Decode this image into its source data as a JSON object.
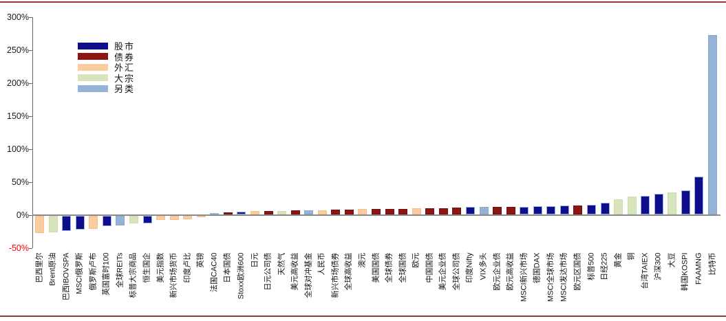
{
  "frame": {
    "border_color": "#953735",
    "background": "#FFFFFF",
    "axis_color": "#666666",
    "baseline_color": "#8C8C8C",
    "tick_text_color": "#1A1A1A",
    "negative_tick_color": "#FF0000"
  },
  "chart_data": {
    "type": "bar",
    "title": "",
    "unit": "%",
    "sorted": "ascending",
    "grid": "none",
    "legend_position": "inside-top-left",
    "ylim": [
      -50,
      300
    ],
    "yticks": [
      300,
      250,
      200,
      150,
      100,
      50,
      0,
      -50
    ],
    "ytick_labels": [
      "300%",
      "250%",
      "200%",
      "150%",
      "100%",
      "50%",
      "0%",
      "-50%"
    ],
    "legend": [
      {
        "label": "股市",
        "color": "#0E0E8C",
        "border": "#95B3D7"
      },
      {
        "label": "债券",
        "color": "#8F1414",
        "border": "#6E0F0F"
      },
      {
        "label": "外汇",
        "color": "#FBCD9E",
        "border": "#F5BE8A"
      },
      {
        "label": "大宗",
        "color": "#D7E4BC",
        "border": "#CCDCAC"
      },
      {
        "label": "另类",
        "color": "#95B3D7",
        "border": "#8CA8C9"
      }
    ],
    "categories": [
      "巴西里尔",
      "Brent原油",
      "巴西IBOVSPA",
      "MSCI俄罗斯",
      "俄罗斯卢布",
      "英国富时100",
      "全球REITs",
      "标普大宗商品",
      "恒生国企",
      "美元指数",
      "新兴市场货币",
      "印度卢比",
      "英镑",
      "法国CAC40",
      "日本国债",
      "Stoxx欧洲600",
      "日元",
      "日元公司债",
      "天然气",
      "美元高收益",
      "全球对冲基金",
      "人民币",
      "新兴市场债券",
      "全球高收益",
      "澳元",
      "美国国债",
      "全球债券",
      "全球国债",
      "欧元",
      "中国国债",
      "美元企业债",
      "全球公司债",
      "印度Nifty",
      "VIX多头",
      "欧元企业债",
      "欧元高收益",
      "MSCI新兴市场",
      "德国DAX",
      "MSCI全球市场",
      "MSCI发达市场",
      "欧元区国债",
      "标普500",
      "日经225",
      "黄金",
      "铜",
      "台湾TAIEX",
      "沪深300",
      "大豆",
      "韩国KOSPI",
      "FAAMNG",
      "比特币"
    ],
    "groups": [
      "外汇",
      "大宗",
      "股市",
      "股市",
      "外汇",
      "股市",
      "另类",
      "大宗",
      "股市",
      "外汇",
      "外汇",
      "外汇",
      "外汇",
      "股市",
      "债券",
      "股市",
      "外汇",
      "债券",
      "大宗",
      "债券",
      "另类",
      "外汇",
      "债券",
      "债券",
      "外汇",
      "债券",
      "债券",
      "债券",
      "外汇",
      "债券",
      "债券",
      "债券",
      "股市",
      "另类",
      "债券",
      "债券",
      "股市",
      "股市",
      "股市",
      "股市",
      "债券",
      "股市",
      "股市",
      "大宗",
      "大宗",
      "股市",
      "股市",
      "大宗",
      "股市",
      "股市",
      "另类"
    ],
    "values": [
      -26,
      -25,
      -23,
      -21,
      -20,
      -16,
      -15,
      -11.5,
      -11,
      -6.5,
      -6,
      -5,
      -2,
      2,
      3.5,
      4,
      5,
      5,
      5,
      6,
      6,
      6.5,
      7.5,
      7.5,
      8,
      8,
      8.5,
      8.5,
      9,
      9,
      9.5,
      10,
      11,
      11,
      11,
      11.5,
      12,
      13,
      13,
      14,
      14,
      15,
      18,
      23,
      27,
      28,
      31,
      33,
      36,
      57,
      272
    ]
  }
}
